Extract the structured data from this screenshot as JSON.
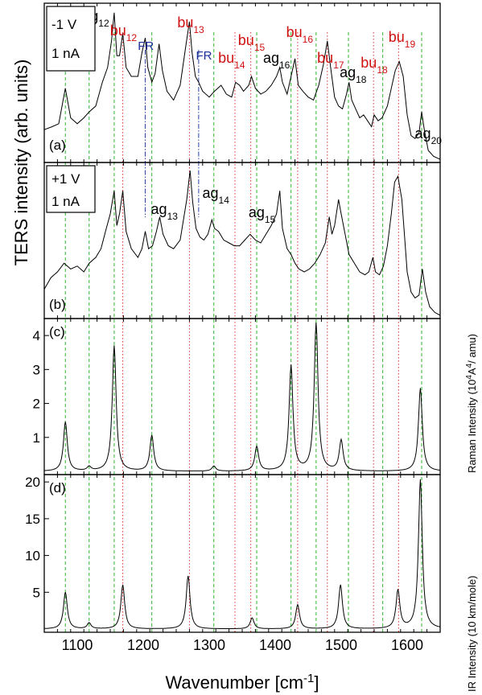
{
  "chart_data": {
    "type": "line",
    "x_axis": {
      "label": "Wavenumber [cm",
      "label_sup": "-1",
      "label_tail": "]",
      "range": [
        1050,
        1650
      ],
      "ticks": [
        1100,
        1200,
        1300,
        1400,
        1500,
        1600
      ]
    },
    "shared_ylabel": "TERS intensity (arb. units)",
    "guide_lines": {
      "ag": [
        1082,
        1118,
        1156,
        1213,
        1307,
        1372,
        1424,
        1462,
        1511,
        1563,
        1622
      ],
      "bu": [
        1169,
        1270,
        1339,
        1363,
        1434,
        1479,
        1549,
        1587
      ],
      "fr": [
        1203,
        1284
      ]
    },
    "panels": [
      {
        "id": "a",
        "panel_label": "(a)",
        "box_lines": [
          "-1 V",
          "1 nA"
        ],
        "annotations": [
          {
            "text": "ag",
            "sub": "12",
            "x": 1128,
            "color": "#000000"
          },
          {
            "text": "bu",
            "sub": "12",
            "x": 1170,
            "color": "#d01010"
          },
          {
            "text": "FR",
            "sub": "",
            "x": 1204,
            "color": "#1a2f9a"
          },
          {
            "text": "bu",
            "sub": "13",
            "x": 1272,
            "color": "#d01010"
          },
          {
            "text": "FR",
            "sub": "",
            "x": 1292,
            "color": "#1a2f9a"
          },
          {
            "text": "bu",
            "sub": "14",
            "x": 1334,
            "color": "#d01010"
          },
          {
            "text": "bu",
            "sub": "15",
            "x": 1364,
            "color": "#d01010"
          },
          {
            "text": "ag",
            "sub": "16",
            "x": 1402,
            "color": "#000000"
          },
          {
            "text": "bu",
            "sub": "16",
            "x": 1437,
            "color": "#d01010"
          },
          {
            "text": "bu",
            "sub": "17",
            "x": 1484,
            "color": "#d01010"
          },
          {
            "text": "ag",
            "sub": "18",
            "x": 1518,
            "color": "#000000"
          },
          {
            "text": "bu",
            "sub": "18",
            "x": 1550,
            "color": "#d01010"
          },
          {
            "text": "bu",
            "sub": "19",
            "x": 1592,
            "color": "#d01010"
          },
          {
            "text": "ag",
            "sub": "20",
            "x": 1632,
            "color": "#000000"
          }
        ]
      },
      {
        "id": "b",
        "panel_label": "(b)",
        "box_lines": [
          "+1 V",
          "1 nA"
        ],
        "annotations": [
          {
            "text": "ag",
            "sub": "13",
            "x": 1232,
            "color": "#000000"
          },
          {
            "text": "ag",
            "sub": "14",
            "x": 1310,
            "color": "#000000"
          },
          {
            "text": "ag",
            "sub": "15",
            "x": 1380,
            "color": "#000000"
          }
        ]
      },
      {
        "id": "c",
        "panel_label": "(c)",
        "ylabel": "Raman Intensity (10",
        "ylabel_sup1": "4",
        "ylabel_mid": "A",
        "ylabel_sup2": "4",
        "ylabel_tail": "/ amu)",
        "ylim": [
          0,
          4.5
        ],
        "yticks": [
          1,
          2,
          3,
          4
        ],
        "peaks": [
          {
            "x": 1082,
            "y": 1.45
          },
          {
            "x": 1118,
            "y": 0.12
          },
          {
            "x": 1156,
            "y": 3.7
          },
          {
            "x": 1213,
            "y": 1.05
          },
          {
            "x": 1307,
            "y": 0.15
          },
          {
            "x": 1372,
            "y": 0.72
          },
          {
            "x": 1424,
            "y": 3.1
          },
          {
            "x": 1462,
            "y": 4.35
          },
          {
            "x": 1500,
            "y": 0.9
          },
          {
            "x": 1620,
            "y": 2.45
          }
        ]
      },
      {
        "id": "d",
        "panel_label": "(d)",
        "ylabel": "IR Intensity (10 km/mole)",
        "ylim": [
          0,
          21
        ],
        "yticks": [
          5,
          10,
          15,
          20
        ],
        "peaks": [
          {
            "x": 1082,
            "y": 5.0
          },
          {
            "x": 1118,
            "y": 0.8
          },
          {
            "x": 1169,
            "y": 6.0
          },
          {
            "x": 1268,
            "y": 7.2
          },
          {
            "x": 1365,
            "y": 1.5
          },
          {
            "x": 1434,
            "y": 3.3
          },
          {
            "x": 1499,
            "y": 6.0
          },
          {
            "x": 1586,
            "y": 5.2
          },
          {
            "x": 1620,
            "y": 20.3
          }
        ]
      }
    ],
    "spectrum_a": [
      [
        1050,
        0.2
      ],
      [
        1062,
        0.22
      ],
      [
        1072,
        0.24
      ],
      [
        1082,
        0.48
      ],
      [
        1090,
        0.28
      ],
      [
        1100,
        0.24
      ],
      [
        1110,
        0.28
      ],
      [
        1118,
        0.32
      ],
      [
        1128,
        0.36
      ],
      [
        1138,
        0.52
      ],
      [
        1146,
        0.62
      ],
      [
        1152,
        0.8
      ],
      [
        1156,
        0.99
      ],
      [
        1160,
        0.7
      ],
      [
        1164,
        0.7
      ],
      [
        1169,
        0.85
      ],
      [
        1174,
        0.62
      ],
      [
        1182,
        0.56
      ],
      [
        1192,
        0.56
      ],
      [
        1198,
        0.72
      ],
      [
        1203,
        0.82
      ],
      [
        1207,
        0.62
      ],
      [
        1213,
        0.52
      ],
      [
        1218,
        0.58
      ],
      [
        1224,
        0.78
      ],
      [
        1229,
        0.6
      ],
      [
        1236,
        0.46
      ],
      [
        1246,
        0.4
      ],
      [
        1256,
        0.5
      ],
      [
        1265,
        0.78
      ],
      [
        1270,
        0.93
      ],
      [
        1274,
        0.72
      ],
      [
        1279,
        0.56
      ],
      [
        1284,
        0.52
      ],
      [
        1290,
        0.46
      ],
      [
        1300,
        0.42
      ],
      [
        1308,
        0.46
      ],
      [
        1318,
        0.5
      ],
      [
        1326,
        0.44
      ],
      [
        1334,
        0.42
      ],
      [
        1340,
        0.52
      ],
      [
        1346,
        0.5
      ],
      [
        1352,
        0.46
      ],
      [
        1360,
        0.5
      ],
      [
        1364,
        0.56
      ],
      [
        1370,
        0.48
      ],
      [
        1378,
        0.44
      ],
      [
        1386,
        0.46
      ],
      [
        1394,
        0.5
      ],
      [
        1402,
        0.56
      ],
      [
        1407,
        0.62
      ],
      [
        1411,
        0.52
      ],
      [
        1418,
        0.44
      ],
      [
        1424,
        0.56
      ],
      [
        1430,
        0.68
      ],
      [
        1435,
        0.5
      ],
      [
        1442,
        0.46
      ],
      [
        1450,
        0.42
      ],
      [
        1458,
        0.4
      ],
      [
        1466,
        0.5
      ],
      [
        1473,
        0.64
      ],
      [
        1479,
        0.8
      ],
      [
        1484,
        0.62
      ],
      [
        1490,
        0.42
      ],
      [
        1496,
        0.36
      ],
      [
        1502,
        0.34
      ],
      [
        1508,
        0.44
      ],
      [
        1512,
        0.52
      ],
      [
        1516,
        0.4
      ],
      [
        1522,
        0.34
      ],
      [
        1528,
        0.28
      ],
      [
        1534,
        0.3
      ],
      [
        1540,
        0.26
      ],
      [
        1546,
        0.22
      ],
      [
        1550,
        0.3
      ],
      [
        1556,
        0.26
      ],
      [
        1562,
        0.28
      ],
      [
        1570,
        0.36
      ],
      [
        1576,
        0.48
      ],
      [
        1582,
        0.6
      ],
      [
        1588,
        0.66
      ],
      [
        1594,
        0.56
      ],
      [
        1600,
        0.3
      ],
      [
        1606,
        0.16
      ],
      [
        1612,
        0.14
      ],
      [
        1618,
        0.18
      ],
      [
        1622,
        0.32
      ],
      [
        1626,
        0.2
      ],
      [
        1632,
        0.06
      ],
      [
        1640,
        0.02
      ],
      [
        1650,
        0.0
      ]
    ],
    "spectrum_b": [
      [
        1050,
        0.18
      ],
      [
        1060,
        0.26
      ],
      [
        1070,
        0.3
      ],
      [
        1080,
        0.36
      ],
      [
        1090,
        0.32
      ],
      [
        1100,
        0.34
      ],
      [
        1110,
        0.3
      ],
      [
        1118,
        0.36
      ],
      [
        1128,
        0.4
      ],
      [
        1136,
        0.46
      ],
      [
        1144,
        0.6
      ],
      [
        1150,
        0.7
      ],
      [
        1156,
        0.86
      ],
      [
        1160,
        0.62
      ],
      [
        1164,
        0.7
      ],
      [
        1169,
        0.86
      ],
      [
        1174,
        0.58
      ],
      [
        1182,
        0.46
      ],
      [
        1192,
        0.4
      ],
      [
        1198,
        0.46
      ],
      [
        1203,
        0.58
      ],
      [
        1208,
        0.46
      ],
      [
        1214,
        0.48
      ],
      [
        1220,
        0.58
      ],
      [
        1225,
        0.68
      ],
      [
        1230,
        0.56
      ],
      [
        1238,
        0.48
      ],
      [
        1246,
        0.46
      ],
      [
        1256,
        0.52
      ],
      [
        1266,
        0.8
      ],
      [
        1271,
        1.0
      ],
      [
        1275,
        0.78
      ],
      [
        1280,
        0.6
      ],
      [
        1286,
        0.54
      ],
      [
        1292,
        0.52
      ],
      [
        1298,
        0.56
      ],
      [
        1304,
        0.66
      ],
      [
        1308,
        0.6
      ],
      [
        1314,
        0.58
      ],
      [
        1322,
        0.52
      ],
      [
        1330,
        0.5
      ],
      [
        1338,
        0.48
      ],
      [
        1346,
        0.48
      ],
      [
        1354,
        0.52
      ],
      [
        1362,
        0.56
      ],
      [
        1370,
        0.52
      ],
      [
        1378,
        0.5
      ],
      [
        1386,
        0.56
      ],
      [
        1394,
        0.62
      ],
      [
        1402,
        0.7
      ],
      [
        1407,
        0.86
      ],
      [
        1411,
        0.6
      ],
      [
        1418,
        0.46
      ],
      [
        1424,
        0.42
      ],
      [
        1430,
        0.36
      ],
      [
        1436,
        0.32
      ],
      [
        1444,
        0.3
      ],
      [
        1452,
        0.32
      ],
      [
        1460,
        0.36
      ],
      [
        1468,
        0.42
      ],
      [
        1476,
        0.5
      ],
      [
        1482,
        0.68
      ],
      [
        1486,
        0.56
      ],
      [
        1490,
        0.62
      ],
      [
        1496,
        0.8
      ],
      [
        1500,
        0.7
      ],
      [
        1506,
        0.56
      ],
      [
        1512,
        0.42
      ],
      [
        1520,
        0.36
      ],
      [
        1528,
        0.3
      ],
      [
        1536,
        0.28
      ],
      [
        1542,
        0.3
      ],
      [
        1548,
        0.4
      ],
      [
        1552,
        0.3
      ],
      [
        1558,
        0.28
      ],
      [
        1564,
        0.34
      ],
      [
        1570,
        0.48
      ],
      [
        1576,
        0.7
      ],
      [
        1581,
        0.92
      ],
      [
        1586,
        0.96
      ],
      [
        1592,
        0.8
      ],
      [
        1600,
        0.3
      ],
      [
        1606,
        0.16
      ],
      [
        1612,
        0.12
      ],
      [
        1618,
        0.14
      ],
      [
        1623,
        0.32
      ],
      [
        1628,
        0.16
      ],
      [
        1634,
        0.06
      ],
      [
        1642,
        0.02
      ],
      [
        1650,
        0.0
      ]
    ]
  }
}
